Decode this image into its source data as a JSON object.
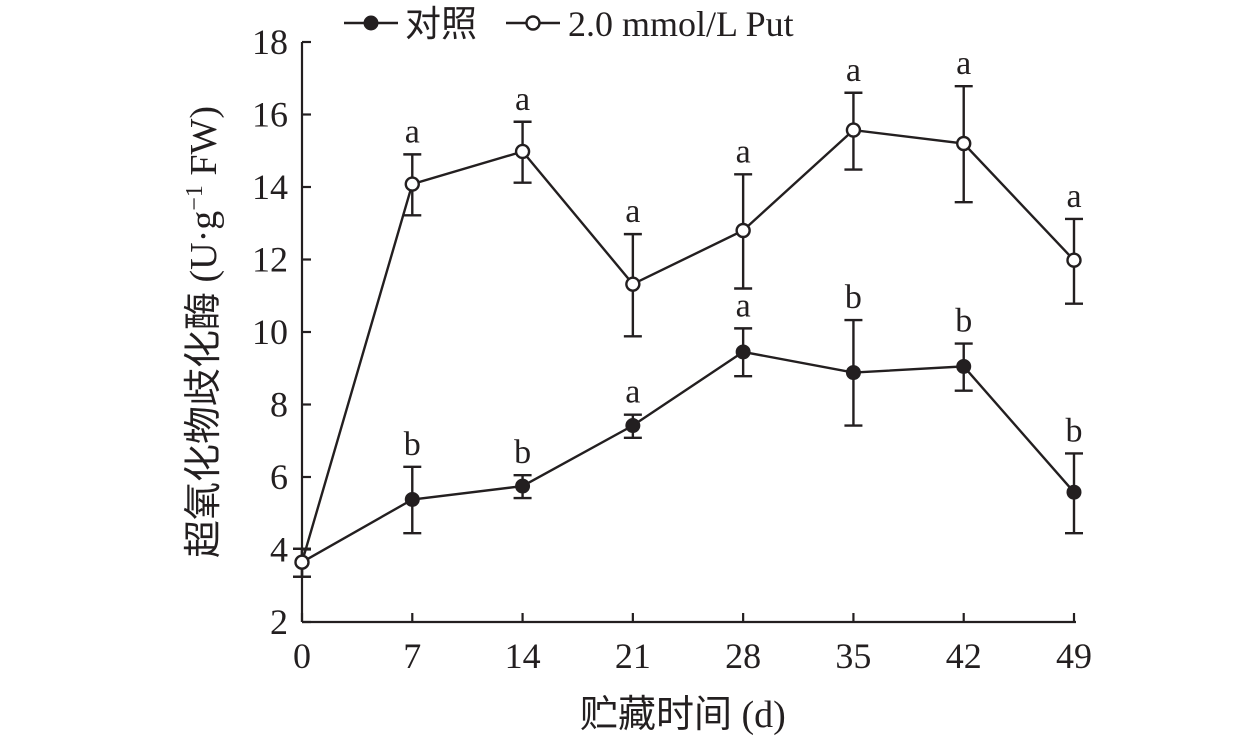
{
  "chart_data": {
    "type": "line",
    "xlabel": "贮藏时间 (d)",
    "ylabel_main": "超氧化物歧化酶 (U·g",
    "ylabel_sup": "−1",
    "ylabel_end": " FW)",
    "x": [
      0,
      7,
      14,
      21,
      28,
      35,
      42,
      49
    ],
    "x_ticks": [
      "0",
      "7",
      "14",
      "21",
      "28",
      "35",
      "42",
      "49"
    ],
    "ylim": [
      2,
      18
    ],
    "y_ticks": [
      "2",
      "4",
      "6",
      "8",
      "10",
      "12",
      "14",
      "16",
      "18"
    ],
    "legend_position": "top",
    "grid": false,
    "series": [
      {
        "name": "对照",
        "marker": "filled-circle",
        "values": [
          3.65,
          5.38,
          5.75,
          7.42,
          9.45,
          8.88,
          9.05,
          5.58
        ],
        "err_low": [
          3.25,
          4.45,
          5.42,
          7.08,
          8.78,
          7.42,
          8.38,
          4.45
        ],
        "err_high": [
          4.02,
          6.28,
          6.05,
          7.72,
          10.1,
          10.33,
          9.68,
          6.65
        ],
        "sig": [
          "",
          "b",
          "b",
          "a",
          "a",
          "b",
          "b",
          "b"
        ]
      },
      {
        "name": "2.0 mmol/L Put",
        "marker": "open-circle",
        "values": [
          3.65,
          14.08,
          14.98,
          11.32,
          12.8,
          15.57,
          15.2,
          11.98
        ],
        "err_low": [
          3.25,
          13.22,
          14.12,
          9.88,
          11.2,
          14.48,
          13.58,
          10.78
        ],
        "err_high": [
          4.02,
          14.9,
          15.8,
          12.7,
          14.35,
          16.6,
          16.78,
          13.12
        ],
        "sig": [
          "",
          "a",
          "a",
          "a",
          "a",
          "a",
          "a",
          "a"
        ]
      }
    ]
  }
}
